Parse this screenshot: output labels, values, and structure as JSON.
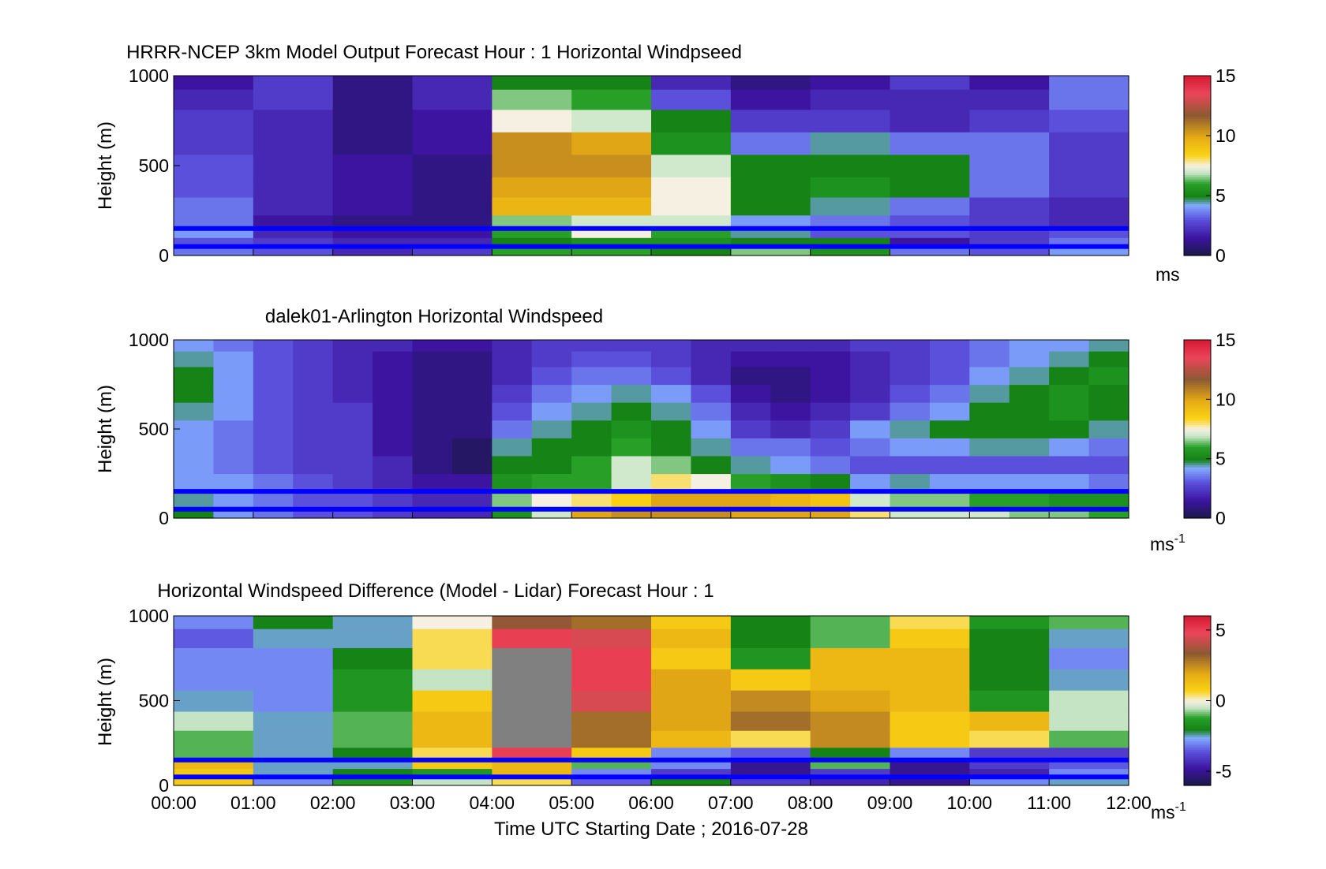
{
  "figure": {
    "xticks": [
      "00:00",
      "01:00",
      "02:00",
      "03:00",
      "04:00",
      "05:00",
      "06:00",
      "07:00",
      "08:00",
      "09:00",
      "10:00",
      "11:00",
      "12:00"
    ],
    "xlabel": "Time UTC  Starting Date ; 2016-07-28",
    "overlay_color": "#0000ff"
  },
  "chart_data": [
    {
      "type": "heatmap",
      "title": "HRRR-NCEP 3km Model Output   Forecast Hour : 1 Horizontal Windpseed",
      "ylabel": "Height (m)",
      "ylim": [
        0,
        1000
      ],
      "yticks": [
        0,
        500,
        1000
      ],
      "xlim": [
        0,
        12
      ],
      "colorbar": {
        "ticks": [
          0,
          5,
          10,
          15
        ],
        "label": "ms",
        "clim": [
          0,
          15
        ]
      },
      "x_hours": [
        0,
        1,
        2,
        3,
        4,
        5,
        6,
        7,
        8,
        9,
        10,
        11
      ],
      "y_levels_m": [
        25,
        75,
        125,
        175,
        275,
        375,
        500,
        625,
        750,
        875,
        975
      ],
      "values": [
        [
          3.5,
          3.0,
          2.0,
          2.5,
          6.0,
          6.0,
          5.0,
          6.5,
          5.5,
          3.5,
          3.0,
          4.0
        ],
        [
          3.0,
          2.5,
          2.0,
          2.0,
          5.0,
          5.5,
          5.5,
          5.0,
          5.0,
          1.5,
          2.5,
          3.5
        ],
        [
          4.0,
          2.0,
          1.5,
          1.5,
          6.0,
          7.5,
          6.0,
          4.5,
          3.0,
          3.0,
          2.5,
          3.0
        ],
        [
          3.5,
          1.5,
          1.0,
          1.0,
          6.5,
          7.0,
          7.0,
          4.0,
          3.5,
          3.0,
          2.5,
          2.0
        ],
        [
          3.5,
          2.0,
          1.5,
          1.0,
          9.5,
          9.5,
          7.5,
          5.0,
          4.5,
          3.5,
          2.5,
          2.0
        ],
        [
          3.0,
          2.0,
          1.5,
          1.0,
          10.0,
          10.0,
          7.5,
          5.0,
          5.5,
          5.0,
          3.5,
          2.5
        ],
        [
          3.0,
          2.0,
          1.5,
          1.0,
          10.5,
          10.5,
          7.0,
          5.0,
          5.0,
          5.0,
          3.5,
          2.5
        ],
        [
          2.5,
          2.0,
          1.0,
          1.5,
          10.5,
          10.0,
          5.5,
          3.5,
          4.5,
          3.5,
          3.5,
          2.5
        ],
        [
          2.5,
          2.0,
          1.0,
          1.5,
          7.5,
          7.0,
          5.0,
          2.5,
          2.5,
          2.0,
          2.5,
          3.0
        ],
        [
          2.0,
          2.5,
          1.0,
          2.0,
          6.5,
          6.0,
          3.0,
          1.5,
          2.0,
          2.0,
          2.0,
          3.5
        ],
        [
          1.5,
          2.5,
          1.0,
          2.0,
          5.0,
          5.0,
          2.0,
          1.0,
          1.5,
          2.5,
          1.5,
          3.5
        ]
      ],
      "overlay_lines_m": [
        50,
        150
      ]
    },
    {
      "type": "heatmap",
      "title": "dalek01-Arlington  Horizontal Windspeed",
      "ylabel": "Height (m)",
      "ylim": [
        0,
        1000
      ],
      "yticks": [
        0,
        500,
        1000
      ],
      "xlim": [
        0,
        12
      ],
      "colorbar": {
        "ticks": [
          0,
          5,
          10,
          15
        ],
        "label": "ms",
        "label_exp": "-1",
        "clim": [
          0,
          15
        ]
      },
      "x_hours": [
        0,
        0.5,
        1,
        1.5,
        2,
        2.5,
        3,
        3.5,
        4,
        4.5,
        5,
        5.5,
        6,
        6.5,
        7,
        7.5,
        8,
        8.5,
        9,
        9.5,
        10,
        10.5,
        11,
        11.5
      ],
      "y_levels_m": [
        25,
        100,
        200,
        300,
        400,
        500,
        600,
        700,
        800,
        900,
        975
      ],
      "values": [
        [
          5.0,
          4.0,
          3.5,
          3.0,
          3.0,
          2.5,
          2.0,
          2.0,
          5.5,
          7.0,
          10.0,
          10.5,
          10.5,
          10.5,
          10.0,
          10.0,
          10.0,
          8.0,
          7.0,
          7.0,
          7.0,
          6.5,
          6.5,
          6.0
        ],
        [
          4.5,
          4.0,
          3.5,
          3.0,
          3.0,
          2.5,
          2.0,
          2.0,
          6.5,
          7.5,
          8.0,
          8.5,
          10.0,
          10.0,
          10.0,
          9.5,
          9.0,
          7.0,
          6.5,
          6.5,
          6.0,
          6.0,
          5.5,
          5.5
        ],
        [
          4.0,
          4.0,
          3.5,
          3.0,
          2.5,
          2.0,
          1.5,
          1.5,
          5.5,
          6.0,
          6.0,
          7.0,
          8.0,
          7.5,
          6.0,
          5.5,
          5.0,
          4.0,
          4.5,
          4.0,
          4.0,
          4.0,
          4.0,
          3.5
        ],
        [
          4.0,
          3.5,
          3.0,
          2.5,
          2.5,
          2.0,
          1.0,
          0.5,
          5.0,
          5.0,
          6.0,
          7.0,
          6.5,
          5.0,
          4.5,
          4.0,
          3.5,
          3.0,
          3.0,
          3.0,
          3.0,
          3.0,
          3.0,
          3.0
        ],
        [
          4.0,
          3.5,
          3.0,
          2.5,
          2.5,
          1.5,
          1.0,
          0.5,
          4.5,
          5.0,
          5.0,
          6.0,
          5.0,
          4.5,
          3.5,
          3.5,
          3.0,
          3.5,
          4.0,
          4.0,
          4.5,
          4.5,
          4.0,
          3.5
        ],
        [
          4.0,
          3.5,
          3.0,
          2.5,
          2.5,
          1.5,
          1.0,
          1.0,
          3.5,
          4.5,
          5.0,
          5.5,
          5.0,
          4.0,
          2.5,
          2.0,
          2.5,
          4.0,
          4.5,
          5.0,
          5.0,
          5.0,
          5.0,
          4.5
        ],
        [
          4.5,
          4.0,
          3.0,
          2.5,
          2.5,
          1.5,
          1.0,
          1.0,
          3.0,
          4.0,
          4.5,
          5.0,
          4.5,
          3.5,
          2.0,
          1.5,
          2.0,
          2.5,
          3.5,
          4.0,
          5.0,
          5.0,
          5.5,
          5.0
        ],
        [
          5.0,
          4.0,
          3.0,
          2.5,
          2.0,
          1.5,
          1.0,
          1.0,
          2.5,
          3.5,
          4.0,
          4.5,
          4.0,
          3.0,
          1.5,
          1.0,
          1.5,
          2.0,
          3.0,
          3.5,
          4.5,
          5.0,
          5.5,
          5.0
        ],
        [
          5.0,
          4.0,
          3.0,
          2.5,
          2.0,
          1.5,
          1.0,
          1.0,
          2.0,
          3.0,
          3.5,
          3.5,
          3.0,
          2.0,
          1.0,
          1.0,
          1.5,
          2.0,
          2.5,
          3.0,
          4.0,
          4.5,
          5.0,
          5.5
        ],
        [
          4.5,
          4.0,
          3.0,
          2.5,
          2.0,
          1.5,
          1.0,
          1.0,
          2.0,
          2.5,
          3.0,
          3.0,
          2.5,
          2.0,
          1.5,
          1.5,
          1.5,
          2.0,
          2.5,
          3.0,
          3.5,
          4.0,
          4.5,
          5.0
        ],
        [
          4.0,
          3.5,
          3.0,
          2.5,
          2.0,
          2.0,
          1.5,
          1.5,
          2.0,
          2.5,
          2.5,
          2.5,
          2.5,
          2.0,
          2.0,
          2.0,
          2.0,
          2.5,
          2.5,
          3.0,
          3.5,
          4.0,
          4.0,
          4.5
        ]
      ],
      "overlay_lines_m": [
        50,
        150
      ]
    },
    {
      "type": "heatmap",
      "title": "Horizontal Windspeed Difference (Model - Lidar) Forecast Hour : 1",
      "ylabel": "Height (m)",
      "ylim": [
        0,
        1000
      ],
      "yticks": [
        0,
        500,
        1000
      ],
      "xlim": [
        0,
        12
      ],
      "colorbar": {
        "ticks": [
          -5,
          0,
          5
        ],
        "label": "ms",
        "label_exp": "-1",
        "clim": [
          -6,
          6
        ]
      },
      "x_hours": [
        0,
        1,
        2,
        3,
        4,
        5,
        6,
        7,
        8,
        9,
        10,
        11
      ],
      "y_levels_m": [
        25,
        75,
        125,
        175,
        275,
        375,
        500,
        625,
        750,
        875,
        975
      ],
      "values": [
        [
          1.0,
          -3.0,
          -1.5,
          -0.5,
          0.5,
          -3.5,
          -2.0,
          -4.0,
          -4.5,
          -5.0,
          -3.0,
          -2.5
        ],
        [
          1.0,
          -2.5,
          -2.0,
          -1.5,
          1.5,
          -3.0,
          -4.0,
          -5.0,
          -4.0,
          -5.0,
          -4.5,
          -3.0
        ],
        [
          1.5,
          -2.5,
          -2.5,
          1.0,
          1.5,
          -1.0,
          -3.0,
          -5.0,
          -1.0,
          -5.0,
          -4.0,
          -3.5
        ],
        [
          -1.0,
          -2.5,
          -2.0,
          0.5,
          5.0,
          1.0,
          -3.0,
          -3.5,
          -2.0,
          -3.0,
          -4.0,
          -4.0
        ],
        [
          -1.0,
          -2.5,
          -1.0,
          1.5,
          null,
          3.0,
          1.5,
          0.5,
          2.5,
          1.0,
          0.5,
          -1.0
        ],
        [
          -0.5,
          -2.5,
          -1.0,
          1.5,
          null,
          3.0,
          2.0,
          3.0,
          2.5,
          1.0,
          1.5,
          -0.5
        ],
        [
          -2.5,
          -3.0,
          -1.5,
          1.0,
          null,
          4.5,
          2.0,
          2.5,
          2.0,
          1.5,
          -1.5,
          -0.5
        ],
        [
          -3.0,
          -3.0,
          -1.5,
          -0.5,
          null,
          5.0,
          2.0,
          1.0,
          1.5,
          1.5,
          -2.0,
          -2.5
        ],
        [
          -3.0,
          -3.0,
          -2.0,
          0.5,
          null,
          5.0,
          1.0,
          -1.5,
          1.5,
          1.5,
          -2.0,
          -3.0
        ],
        [
          -3.5,
          -2.5,
          -2.5,
          0.5,
          5.0,
          4.5,
          1.5,
          -2.0,
          -1.0,
          1.0,
          -2.0,
          -2.5
        ],
        [
          -3.0,
          -2.0,
          -2.5,
          0.0,
          3.5,
          3.0,
          1.0,
          -2.0,
          -1.0,
          0.5,
          -1.5,
          -1.0
        ]
      ],
      "overlay_lines_m": [
        50,
        150
      ]
    }
  ]
}
